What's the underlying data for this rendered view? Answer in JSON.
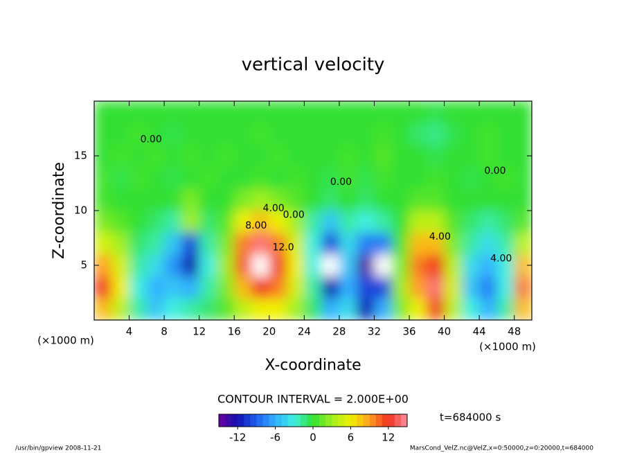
{
  "chart_data": {
    "type": "heatmap",
    "title": "vertical velocity",
    "xlabel": "X-coordinate",
    "ylabel": "Z-coordinate",
    "x_unit_left": "(×1000 m)",
    "x_unit_right": "(×1000 m)",
    "x": [
      1,
      3,
      5,
      7,
      9,
      11,
      13,
      15,
      17,
      19,
      21,
      23,
      25,
      27,
      29,
      31,
      33,
      35,
      37,
      39,
      41,
      43,
      45,
      47,
      49
    ],
    "y": [
      1,
      3,
      5,
      7,
      9,
      11,
      13,
      15,
      17,
      19
    ],
    "z": [
      [
        8,
        4,
        -2,
        -5,
        -3,
        -2,
        -1,
        1,
        4,
        6,
        6,
        3,
        -1,
        -6,
        -4,
        -12,
        -6,
        2,
        6,
        12,
        4,
        -3,
        -6,
        -2,
        8
      ],
      [
        12,
        6,
        -3,
        -6,
        -5,
        -6,
        -2,
        2,
        8,
        12,
        10,
        5,
        -2,
        -12,
        -6,
        -10,
        -10,
        3,
        9,
        14,
        5,
        -5,
        -8,
        -3,
        10
      ],
      [
        9,
        5,
        -2,
        -4,
        -7,
        -12,
        -3,
        3,
        11,
        16,
        12,
        6,
        -3,
        -16,
        -5,
        -14,
        -16,
        2,
        10,
        12,
        4,
        -4,
        -6,
        -3,
        8
      ],
      [
        5,
        3,
        -1,
        -2,
        -5,
        -10,
        -2,
        2,
        10,
        14,
        10,
        5,
        -3,
        -10,
        -4,
        -8,
        -8,
        1,
        8,
        8,
        2,
        -2,
        -4,
        -2,
        4
      ],
      [
        2,
        1,
        0,
        -1,
        -2,
        3,
        -1,
        1,
        6,
        8,
        6,
        3,
        -2,
        -5,
        -2,
        -3,
        -2,
        0,
        4,
        4,
        1,
        -1,
        -2,
        -1,
        1
      ],
      [
        0.5,
        0,
        0,
        0,
        0,
        2,
        0,
        0,
        2,
        3,
        2,
        1,
        0,
        -1,
        0,
        -1,
        0,
        0,
        1,
        1,
        0,
        0,
        0,
        0,
        0
      ],
      [
        0.5,
        -0.5,
        0.5,
        0,
        -0.5,
        0,
        0.5,
        0,
        0,
        0.5,
        0,
        0.5,
        0,
        -0.5,
        0.5,
        -0.5,
        0.5,
        0,
        0,
        0.5,
        0,
        -0.5,
        0,
        0.5,
        0
      ],
      [
        0,
        0.5,
        0,
        0.5,
        0,
        0.5,
        0,
        0.5,
        0,
        0,
        0.5,
        0,
        0,
        0,
        0.5,
        0,
        1,
        0,
        0,
        -0.5,
        0,
        0,
        0.5,
        0,
        0
      ],
      [
        0,
        0,
        0.5,
        0,
        -0.5,
        0,
        0,
        0,
        0,
        0.5,
        0,
        0,
        0,
        0,
        0,
        0,
        0.5,
        0,
        -1,
        -1.5,
        -0.5,
        0,
        0.5,
        0,
        0
      ],
      [
        0,
        0,
        0,
        0,
        0,
        0,
        0,
        0,
        0,
        0,
        0,
        0,
        0,
        0,
        0,
        0,
        0,
        0,
        0,
        -0.5,
        0,
        0,
        0,
        0,
        0
      ]
    ],
    "xlim": [
      0,
      50
    ],
    "ylim": [
      0,
      20
    ],
    "xticks": [
      4,
      8,
      12,
      16,
      20,
      24,
      28,
      32,
      36,
      40,
      44,
      48
    ],
    "yticks": [
      5,
      10,
      15
    ],
    "contour_labels": [
      {
        "text": "8.00",
        "x": 18.5,
        "y": 8.6
      },
      {
        "text": "4.00",
        "x": 20.5,
        "y": 10.2
      },
      {
        "text": "12.0",
        "x": 21.6,
        "y": 6.6
      },
      {
        "text": "0.00",
        "x": 22.8,
        "y": 9.6
      },
      {
        "text": "0.00",
        "x": 6.5,
        "y": 16.5
      },
      {
        "text": "0.00",
        "x": 28.2,
        "y": 12.6
      },
      {
        "text": "0.00",
        "x": 45.8,
        "y": 13.6
      },
      {
        "text": "4.00",
        "x": 39.5,
        "y": 7.6
      },
      {
        "text": "4.00",
        "x": 46.5,
        "y": 5.6
      }
    ],
    "contour_interval": "CONTOUR INTERVAL = 2.000E+00",
    "colorbar": {
      "range": [
        -15,
        15
      ],
      "step": 1,
      "ticks": [
        -12,
        -6,
        0,
        6,
        12
      ]
    },
    "time_label": "t=684000 s",
    "footer_left": "/usr/bin/gpview  2008-11-21",
    "footer_right": "MarsCond_VelZ.nc@VelZ,x=0:50000,z=0:20000,t=684000"
  }
}
